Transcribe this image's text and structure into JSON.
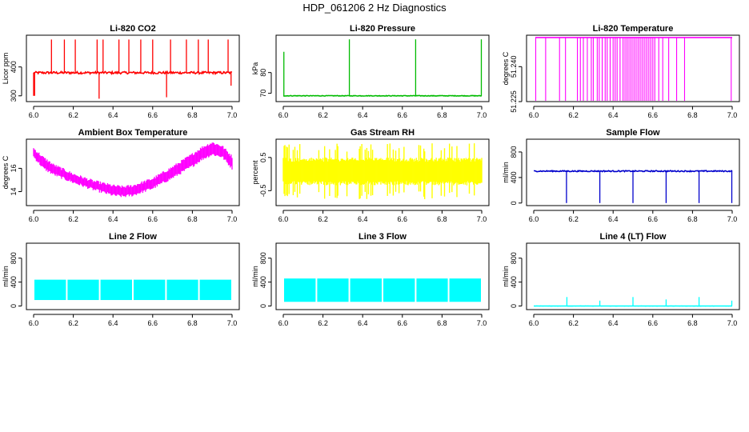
{
  "figure": {
    "title": "HDP_061206  2 Hz Diagnostics"
  },
  "chart_data": [
    {
      "type": "line",
      "id": "co2",
      "title": "Li-820 CO2",
      "ylabel": "Licor ppm",
      "xlabel": "",
      "color": "#ff0000",
      "xlim": [
        6.0,
        7.0
      ],
      "ylim": [
        280,
        510
      ],
      "xticks": [
        6.0,
        6.2,
        6.4,
        6.6,
        6.8,
        7.0
      ],
      "xtick_labels": [
        "6.0",
        "6.2",
        "6.4",
        "6.6",
        "6.8",
        "7.0"
      ],
      "yticks": [
        300,
        400
      ],
      "ytick_labels": [
        "300",
        "400"
      ],
      "pattern": "baseline_spikes",
      "baseline": 380,
      "noise": 4,
      "spikes_up": [
        [
          6.09,
          495
        ],
        [
          6.155,
          495
        ],
        [
          6.21,
          495
        ],
        [
          6.32,
          495
        ],
        [
          6.35,
          495
        ],
        [
          6.43,
          495
        ],
        [
          6.48,
          495
        ],
        [
          6.54,
          495
        ],
        [
          6.6,
          495
        ],
        [
          6.69,
          495
        ],
        [
          6.77,
          495
        ],
        [
          6.83,
          495
        ],
        [
          6.88,
          495
        ],
        [
          6.98,
          495
        ]
      ],
      "spikes_down": [
        [
          6.005,
          300
        ],
        [
          6.33,
          290
        ],
        [
          6.67,
          295
        ],
        [
          6.995,
          335
        ]
      ],
      "start_point": [
        6.0,
        300
      ]
    },
    {
      "type": "line",
      "id": "pressure",
      "title": "Li-820 Pressure",
      "ylabel": "kPa",
      "xlabel": "",
      "color": "#00bb00",
      "xlim": [
        6.0,
        7.0
      ],
      "ylim": [
        66,
        98
      ],
      "xticks": [
        6.0,
        6.2,
        6.4,
        6.6,
        6.8,
        7.0
      ],
      "xtick_labels": [
        "6.0",
        "6.2",
        "6.4",
        "6.6",
        "6.8",
        "7.0"
      ],
      "yticks": [
        70,
        80
      ],
      "ytick_labels": [
        "70",
        "80"
      ],
      "pattern": "baseline_spikes",
      "baseline": 68.8,
      "noise": 0.15,
      "spikes_up": [
        [
          6.003,
          90
        ],
        [
          6.333,
          96
        ],
        [
          6.667,
          96
        ],
        [
          6.998,
          96
        ]
      ],
      "spikes_down": []
    },
    {
      "type": "line",
      "id": "li820_temp",
      "title": "Li-820 Temperature",
      "ylabel": "degrees C",
      "xlabel": "",
      "color": "#ff00ff",
      "xlim": [
        6.0,
        7.0
      ],
      "ylim": [
        51.225,
        51.2535
      ],
      "xticks": [
        6.0,
        6.2,
        6.4,
        6.6,
        6.8,
        7.0
      ],
      "xtick_labels": [
        "6.0",
        "6.2",
        "6.4",
        "6.6",
        "6.8",
        "7.0"
      ],
      "yticks": [
        51.225,
        51.24
      ],
      "ytick_labels": [
        "51.225",
        "51.240"
      ],
      "pattern": "toggle",
      "high": 51.2525,
      "low": 51.225,
      "drops": [
        6.01,
        6.06,
        6.13,
        6.16,
        6.22,
        6.235,
        6.25,
        6.27,
        6.29,
        6.3,
        6.32,
        6.33,
        6.345,
        6.36,
        6.37,
        6.385,
        6.4,
        6.41,
        6.42,
        6.435,
        6.45,
        6.46,
        6.47,
        6.48,
        6.49,
        6.5,
        6.51,
        6.52,
        6.53,
        6.54,
        6.55,
        6.56,
        6.57,
        6.58,
        6.59,
        6.6,
        6.61,
        6.63,
        6.65,
        6.68,
        6.72,
        6.76,
        6.995
      ]
    },
    {
      "type": "line",
      "id": "box_temp",
      "title": "Ambient Box Temperature",
      "ylabel": "degrees C",
      "xlabel": "",
      "color": "#ff00ff",
      "xlim": [
        6.0,
        7.0
      ],
      "ylim": [
        12.8,
        18.5
      ],
      "xticks": [
        6.0,
        6.2,
        6.4,
        6.6,
        6.8,
        7.0
      ],
      "xtick_labels": [
        "6.0",
        "6.2",
        "6.4",
        "6.6",
        "6.8",
        "7.0"
      ],
      "yticks": [
        14,
        16
      ],
      "ytick_labels": [
        "14",
        "16"
      ],
      "pattern": "band",
      "curve_x": [
        6.0,
        6.05,
        6.1,
        6.2,
        6.3,
        6.4,
        6.45,
        6.5,
        6.6,
        6.7,
        6.8,
        6.85,
        6.9,
        6.95,
        7.0
      ],
      "curve_lo": [
        17.0,
        16.0,
        15.5,
        14.8,
        14.2,
        13.7,
        13.6,
        13.7,
        14.3,
        15.2,
        16.2,
        16.8,
        17.2,
        17.0,
        16.0
      ],
      "curve_hi": [
        17.7,
        16.9,
        16.3,
        15.5,
        14.9,
        14.5,
        14.4,
        14.5,
        15.1,
        16.1,
        17.2,
        17.8,
        18.2,
        17.9,
        17.0
      ]
    },
    {
      "type": "line",
      "id": "rh",
      "title": "Gas Stream RH",
      "ylabel": "percent",
      "xlabel": "",
      "color": "#ffff00",
      "xlim": [
        6.0,
        7.0
      ],
      "ylim": [
        -0.95,
        1.05
      ],
      "xticks": [
        6.0,
        6.2,
        6.4,
        6.6,
        6.8,
        7.0
      ],
      "xtick_labels": [
        "6.0",
        "6.2",
        "6.4",
        "6.6",
        "6.8",
        "7.0"
      ],
      "yticks": [
        -0.5,
        0.5
      ],
      "ytick_labels": [
        "-0.5",
        "0.5"
      ],
      "pattern": "noise",
      "center": 0.08,
      "amp": 0.42,
      "outlier_amp": 0.85
    },
    {
      "type": "line",
      "id": "sample_flow",
      "title": "Sample Flow",
      "ylabel": "ml/min",
      "xlabel": "",
      "color": "#0000cc",
      "xlim": [
        6.0,
        7.0
      ],
      "ylim": [
        -40,
        1000
      ],
      "xticks": [
        6.0,
        6.2,
        6.4,
        6.6,
        6.8,
        7.0
      ],
      "xtick_labels": [
        "6.0",
        "6.2",
        "6.4",
        "6.6",
        "6.8",
        "7.0"
      ],
      "yticks": [
        0,
        400,
        800
      ],
      "ytick_labels": [
        "0",
        "400",
        "800"
      ],
      "pattern": "baseline_spikes",
      "baseline": 500,
      "noise": 9,
      "spikes_up": [],
      "spikes_down": [
        [
          6.165,
          0
        ],
        [
          6.333,
          0
        ],
        [
          6.5,
          0
        ],
        [
          6.667,
          0
        ],
        [
          6.833,
          0
        ],
        [
          6.998,
          0
        ]
      ]
    },
    {
      "type": "line",
      "id": "line2_flow",
      "title": "Line 2 Flow",
      "ylabel": "ml/min",
      "xlabel": "",
      "color": "#00ffff",
      "xlim": [
        6.0,
        7.0
      ],
      "ylim": [
        -60,
        1050
      ],
      "xticks": [
        6.0,
        6.2,
        6.4,
        6.6,
        6.8,
        7.0
      ],
      "xtick_labels": [
        "6.0",
        "6.2",
        "6.4",
        "6.6",
        "6.8",
        "7.0"
      ],
      "yticks": [
        0,
        400,
        800
      ],
      "ytick_labels": [
        "0",
        "400",
        "800"
      ],
      "pattern": "blocks",
      "low": 100,
      "high": 440,
      "gaps": [
        6.0,
        6.167,
        6.333,
        6.5,
        6.667,
        6.833,
        7.0
      ]
    },
    {
      "type": "line",
      "id": "line3_flow",
      "title": "Line 3 Flow",
      "ylabel": "ml/min",
      "xlabel": "",
      "color": "#00ffff",
      "xlim": [
        6.0,
        7.0
      ],
      "ylim": [
        -60,
        1050
      ],
      "xticks": [
        6.0,
        6.2,
        6.4,
        6.6,
        6.8,
        7.0
      ],
      "xtick_labels": [
        "6.0",
        "6.2",
        "6.4",
        "6.6",
        "6.8",
        "7.0"
      ],
      "yticks": [
        0,
        400,
        800
      ],
      "ytick_labels": [
        "0",
        "400",
        "800"
      ],
      "pattern": "blocks",
      "low": 70,
      "high": 460,
      "gaps": [
        6.0,
        6.167,
        6.333,
        6.5,
        6.667,
        6.833,
        7.0
      ]
    },
    {
      "type": "line",
      "id": "line4_flow",
      "title": "Line 4 (LT) Flow",
      "ylabel": "ml/min",
      "xlabel": "",
      "color": "#00ffff",
      "xlim": [
        6.0,
        7.0
      ],
      "ylim": [
        -60,
        1050
      ],
      "xticks": [
        6.0,
        6.2,
        6.4,
        6.6,
        6.8,
        7.0
      ],
      "xtick_labels": [
        "6.0",
        "6.2",
        "6.4",
        "6.6",
        "6.8",
        "7.0"
      ],
      "yticks": [
        0,
        400,
        800
      ],
      "ytick_labels": [
        "0",
        "400",
        "800"
      ],
      "pattern": "baseline_spikes",
      "baseline": 0,
      "noise": 1,
      "spikes_up": [
        [
          6.167,
          150
        ],
        [
          6.333,
          90
        ],
        [
          6.5,
          150
        ],
        [
          6.667,
          110
        ],
        [
          6.833,
          150
        ],
        [
          6.998,
          90
        ]
      ],
      "spikes_down": []
    }
  ]
}
